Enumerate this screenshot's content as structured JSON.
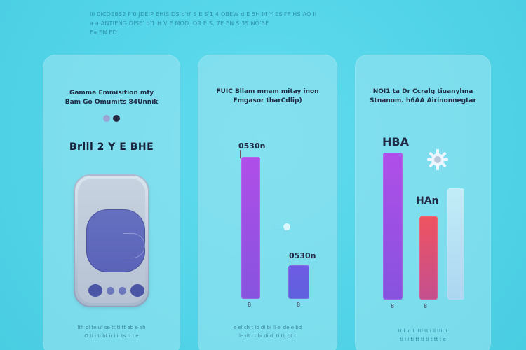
{
  "intro_lines": [
    "Iil 0iCOEBS2 F'0 JDEIP EHIS DS b'tf S E S'1 4 OBEW d E 5H I4 Y ES'FF HS AO II",
    "a a ANTIENG DISE' b'1 H V E MOD. OR E S. 7E EN S 3S NO'BE",
    "Ea EN ED."
  ],
  "panels": [
    {
      "title_line1": "Gamma Emmisition mfy",
      "title_line2": "Bam Go Omumits 84Unnik",
      "heading": "Brill 2 Y E BHE",
      "caption_lines": [
        "Ith pl te uf se tt ti tt ab e ah",
        "O ti i ti bt ir i ii ts ti t e"
      ],
      "colors": {
        "dot_light": "#9aa3d3",
        "dot_dark": "#242842",
        "screen": "#6670c0"
      }
    },
    {
      "title_line1": "FUIC Bllam mnam mitay inon",
      "title_line2": "Fmgasor tharCdlip)",
      "bar_label_top": "0530n",
      "bar_label_bottom": "0530n",
      "x_tick_left": "8",
      "x_tick_right": "8",
      "caption_lines": [
        "e el ch t ib di bi ll el de e bd",
        "le dt ct bi di di ti tb dt t"
      ],
      "chart_values": {
        "left_value": 100,
        "right_value": 26,
        "max_value": 100
      }
    },
    {
      "title_line1": "NOI1 ta Dr Ccralg tiuanyhna",
      "title_line2": "Stnanom. h6AA Airinonnegtar",
      "label_top": "HBA",
      "label_mid": "HAn",
      "x_tick_left": "8",
      "x_tick_right": "8",
      "caption_lines": [
        "tt l ir lt lttl tt i ll ttit t",
        "ti i i ti tt ti ti t tt t e"
      ],
      "chart_values": {
        "left_value": 100,
        "middle_value": 57,
        "right_value": 78,
        "max_value": 100
      }
    }
  ]
}
